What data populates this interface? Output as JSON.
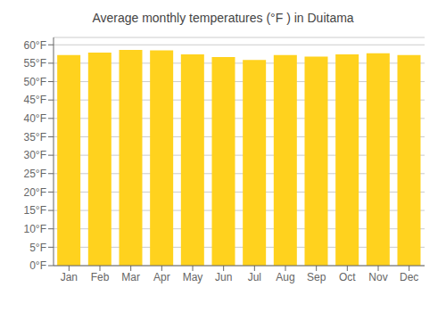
{
  "chart_data": {
    "type": "bar",
    "title": "Average monthly temperatures (°F ) in Duitama",
    "categories": [
      "Jan",
      "Feb",
      "Mar",
      "Apr",
      "May",
      "Jun",
      "Jul",
      "Aug",
      "Sep",
      "Oct",
      "Nov",
      "Dec"
    ],
    "values": [
      57.2,
      57.9,
      58.6,
      58.5,
      57.4,
      56.7,
      55.9,
      57.2,
      56.8,
      57.4,
      57.7,
      57.2
    ],
    "color": "#FFD21E",
    "ylim": [
      0,
      62
    ],
    "yticks": [
      {
        "value": 0,
        "label": "0°F"
      },
      {
        "value": 5,
        "label": "5°F"
      },
      {
        "value": 10,
        "label": "10°F"
      },
      {
        "value": 15,
        "label": "15°F"
      },
      {
        "value": 20,
        "label": "20°F"
      },
      {
        "value": 25,
        "label": "25°F"
      },
      {
        "value": 30,
        "label": "30°F"
      },
      {
        "value": 35,
        "label": "35°F"
      },
      {
        "value": 40,
        "label": "40°F"
      },
      {
        "value": 45,
        "label": "45°F"
      },
      {
        "value": 50,
        "label": "50°F"
      },
      {
        "value": 55,
        "label": "55°F"
      },
      {
        "value": 60,
        "label": "60°F"
      }
    ],
    "grid": true
  }
}
